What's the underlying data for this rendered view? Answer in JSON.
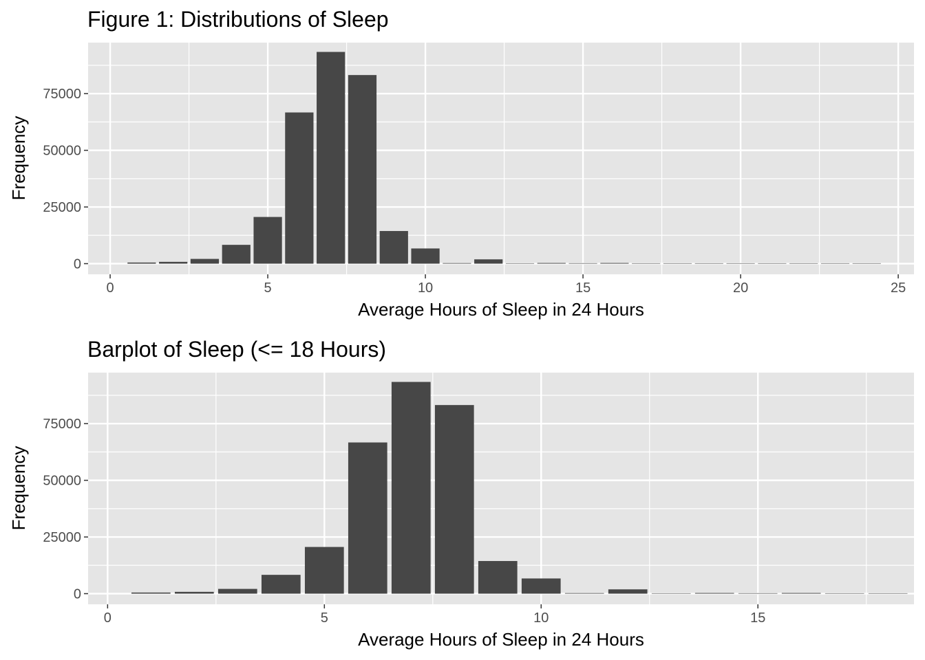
{
  "chart_data": [
    {
      "type": "bar",
      "title": "Figure 1: Distributions of Sleep",
      "xlabel": "Average Hours of Sleep in 24 Hours",
      "ylabel": "Frequency",
      "xlim": [
        -0.7,
        25.5
      ],
      "ylim": [
        -4700,
        97500
      ],
      "x_ticks": [
        0,
        5,
        10,
        15,
        20,
        25
      ],
      "y_ticks": [
        0,
        25000,
        50000,
        75000
      ],
      "grid": true,
      "colors": {
        "bar": "#474747",
        "panel": "#e5e5e5",
        "grid": "#ffffff",
        "tick_text": "#4d4d4d"
      },
      "x": [
        1,
        2,
        3,
        4,
        5,
        6,
        7,
        8,
        9,
        10,
        11,
        12,
        13,
        14,
        15,
        16,
        17,
        18,
        19,
        20,
        21,
        22,
        23,
        24
      ],
      "values": [
        500,
        800,
        2100,
        8300,
        20600,
        66700,
        93400,
        83200,
        14400,
        6700,
        250,
        1900,
        80,
        300,
        200,
        300,
        30,
        80,
        10,
        40,
        5,
        5,
        5,
        5
      ]
    },
    {
      "type": "bar",
      "title": "Barplot of Sleep (<= 18 Hours)",
      "xlabel": "Average Hours of Sleep in 24 Hours",
      "ylabel": "Frequency",
      "xlim": [
        -0.45,
        18.6
      ],
      "ylim": [
        -4700,
        97500
      ],
      "x_ticks": [
        0,
        5,
        10,
        15
      ],
      "y_ticks": [
        0,
        25000,
        50000,
        75000
      ],
      "grid": true,
      "colors": {
        "bar": "#474747",
        "panel": "#e5e5e5",
        "grid": "#ffffff",
        "tick_text": "#4d4d4d"
      },
      "x": [
        1,
        2,
        3,
        4,
        5,
        6,
        7,
        8,
        9,
        10,
        11,
        12,
        13,
        14,
        15,
        16,
        17,
        18
      ],
      "values": [
        500,
        800,
        2100,
        8300,
        20600,
        66700,
        93400,
        83200,
        14400,
        6700,
        250,
        1900,
        80,
        300,
        200,
        300,
        30,
        80
      ]
    }
  ]
}
